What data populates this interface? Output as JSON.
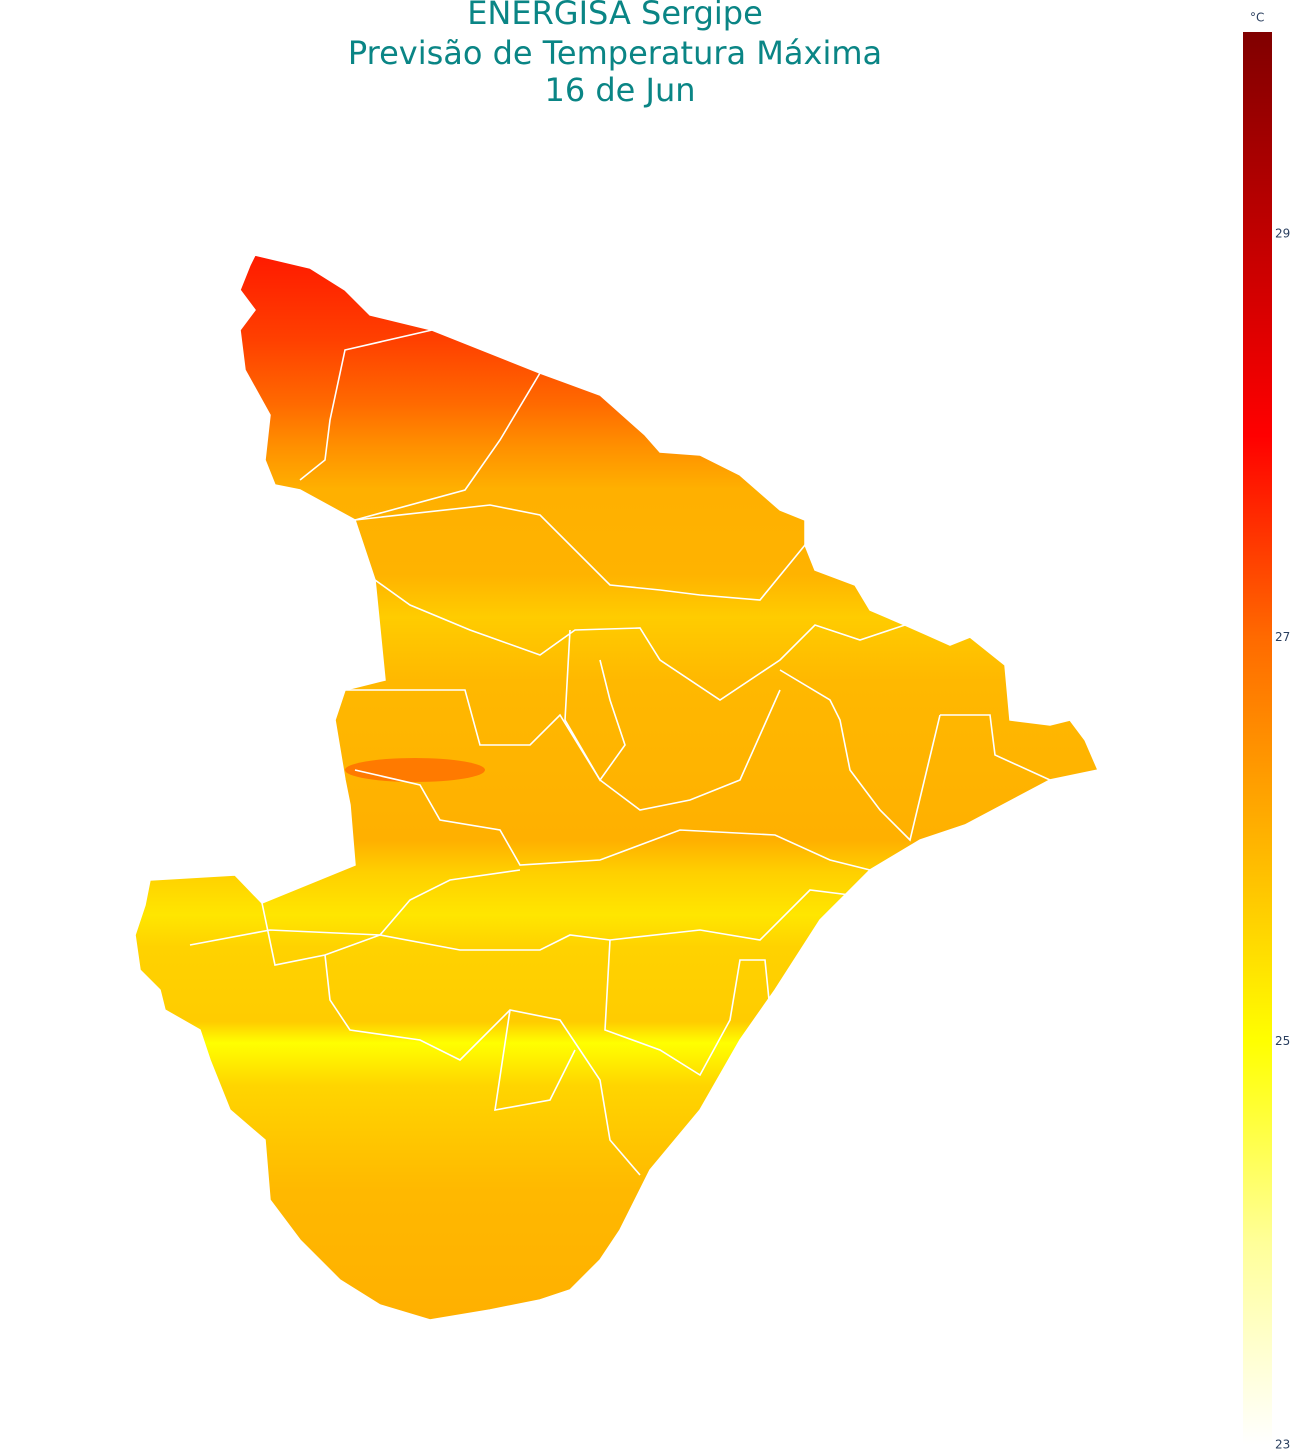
{
  "map": {
    "title": [
      "ENERGISA Sergipe",
      "Previsão de Temperatura Máxima",
      "16 de Jun"
    ],
    "colorbar": {
      "title": "°C",
      "range": [
        23,
        30
      ],
      "ticks": [
        23,
        25,
        27,
        29
      ],
      "colors": [
        "#ffffff",
        "#ffff99",
        "#ffff00",
        "#ffb300",
        "#ff6a00",
        "#ff0000",
        "#c00000",
        "#800000"
      ]
    }
  }
}
